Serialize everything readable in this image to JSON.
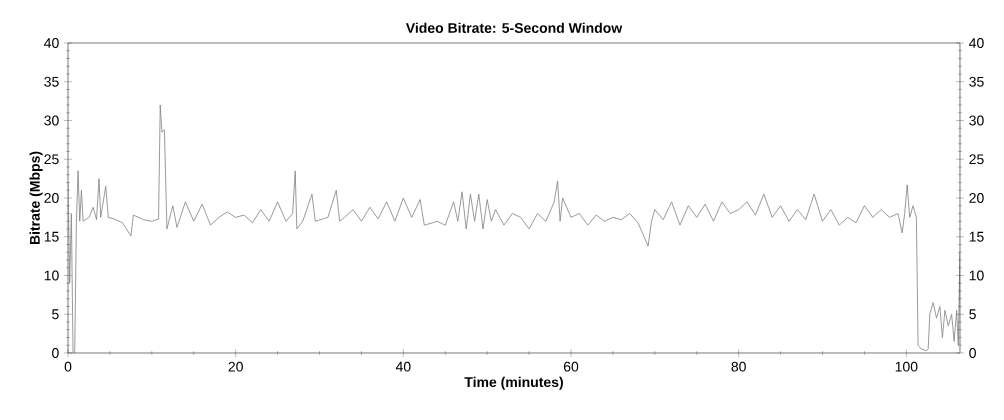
{
  "chart_data": {
    "type": "line",
    "title": "Video Bitrate: 5-Second Window",
    "xlabel": "Time (minutes)",
    "ylabel": "Bitrate (Mbps)",
    "xlim": [
      0,
      106.4
    ],
    "xticks": [
      0,
      20,
      40,
      60,
      80,
      100
    ],
    "ylim": [
      0,
      40
    ],
    "yticks": [
      0,
      5,
      10,
      15,
      20,
      25,
      30,
      35,
      40
    ],
    "y2lim": [
      0,
      40
    ],
    "y2ticks": [
      0,
      5,
      10,
      15,
      20,
      25,
      30,
      35,
      40
    ],
    "grid": false,
    "marker": "none",
    "line_style": "solid",
    "series": [
      {
        "color": "#808080",
        "x": [
          0,
          0.2,
          0.4,
          0.6,
          0.8,
          1.0,
          1.2,
          1.4,
          1.6,
          1.8,
          2.5,
          3.0,
          3.4,
          3.7,
          3.9,
          4.5,
          4.8,
          5.5,
          6.5,
          7.5,
          7.8,
          9,
          10,
          10.8,
          11.0,
          11.2,
          11.5,
          11.8,
          12.5,
          13,
          14,
          15,
          16,
          17,
          18,
          19,
          20,
          21,
          22,
          23,
          24,
          25,
          26,
          26.8,
          27.1,
          27.3,
          28,
          29.1,
          29.5,
          31,
          32,
          32.4,
          33,
          34,
          35,
          36,
          37,
          38,
          39,
          40,
          41,
          42,
          42.5,
          43.5,
          44,
          45,
          46,
          46.5,
          47,
          47.5,
          48,
          48.5,
          49,
          49.5,
          50,
          50.5,
          51,
          52,
          53,
          54,
          55,
          56,
          57,
          58,
          58.4,
          58.7,
          59,
          60,
          61,
          62,
          63,
          64,
          65,
          66,
          67,
          68,
          69.2,
          69.6,
          70,
          71,
          72,
          73,
          74,
          75,
          76,
          77,
          78,
          79,
          80,
          81,
          82,
          83,
          84,
          85,
          86,
          87,
          88,
          89,
          90,
          91,
          92,
          93,
          94,
          95,
          96,
          97,
          98,
          99,
          99.5,
          99.8,
          100.1,
          100.4,
          100.8,
          101.2,
          101.4,
          101.8,
          102.4,
          102.6,
          102.8,
          103.2,
          103.6,
          104,
          104.3,
          104.6,
          105,
          105.4,
          105.7,
          106,
          106.2,
          106.4
        ],
        "values": [
          22,
          9,
          18,
          0,
          0,
          17,
          23.5,
          17,
          21,
          17,
          17.5,
          18.8,
          17.2,
          22.5,
          17.5,
          21.5,
          17.5,
          17.3,
          16.8,
          15.1,
          17.8,
          17.2,
          17,
          17.3,
          32,
          28.5,
          28.8,
          16,
          19,
          16.2,
          19.5,
          17,
          19.2,
          16.5,
          17.5,
          18.2,
          17.5,
          17.8,
          16.8,
          18.5,
          17,
          19.5,
          17,
          18,
          23.5,
          16,
          17,
          20.5,
          17,
          17.5,
          21,
          17,
          17.5,
          18.5,
          17,
          18.8,
          17.3,
          19.5,
          17,
          20,
          17.5,
          19.8,
          16.5,
          16.8,
          17,
          16.5,
          19.5,
          17,
          20.8,
          16,
          20.5,
          17,
          20.5,
          16,
          19.8,
          17,
          18.5,
          16.5,
          18,
          17.5,
          16,
          18,
          17,
          19.5,
          22.2,
          17,
          20,
          17.5,
          18,
          16.5,
          17.8,
          17,
          17.5,
          17.2,
          18,
          16.8,
          13.8,
          17,
          18.5,
          17.2,
          19.5,
          16.5,
          19,
          17.5,
          19.2,
          17,
          19.5,
          18,
          18.5,
          19.5,
          17.8,
          20.5,
          17.5,
          19,
          17,
          18.5,
          17.2,
          20.5,
          17,
          18.5,
          16.5,
          17.5,
          16.8,
          19,
          17.5,
          18.5,
          17.5,
          18,
          15.5,
          18,
          21.7,
          17.5,
          19,
          17.5,
          1,
          0.5,
          0.3,
          0.5,
          5,
          6.5,
          4.5,
          6,
          2,
          5.5,
          3.5,
          5,
          1.5,
          5.5,
          1,
          13
        ]
      }
    ]
  }
}
